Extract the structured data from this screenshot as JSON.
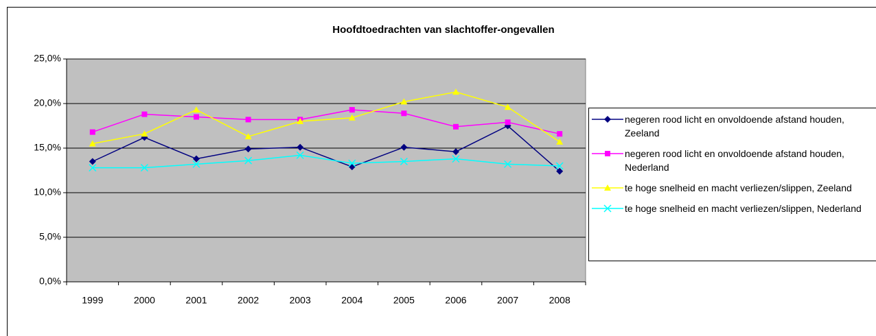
{
  "chart_data": {
    "type": "line",
    "title": "Hoofdtoedrachten van slachtoffer-ongevallen",
    "categories": [
      "1999",
      "2000",
      "2001",
      "2002",
      "2003",
      "2004",
      "2005",
      "2006",
      "2007",
      "2008"
    ],
    "series": [
      {
        "name": "negeren rood licht en onvoldoende afstand houden, Zeeland",
        "color": "#000080",
        "marker": "diamond",
        "values": [
          13.5,
          16.2,
          13.8,
          14.9,
          15.1,
          12.9,
          15.1,
          14.6,
          17.5,
          12.4
        ]
      },
      {
        "name": "negeren rood licht en onvoldoende afstand houden, Nederland",
        "color": "#ff00ff",
        "marker": "square",
        "values": [
          16.8,
          18.8,
          18.5,
          18.2,
          18.2,
          19.3,
          18.9,
          17.4,
          17.9,
          16.6
        ]
      },
      {
        "name": "te hoge snelheid en macht verliezen/slippen, Zeeland",
        "color": "#ffff00",
        "marker": "triangle",
        "values": [
          15.5,
          16.6,
          19.3,
          16.3,
          18.0,
          18.4,
          20.2,
          21.3,
          19.6,
          15.7
        ]
      },
      {
        "name": "te hoge snelheid en macht verliezen/slippen, Nederland",
        "color": "#00ffff",
        "marker": "x",
        "values": [
          12.8,
          12.8,
          13.2,
          13.6,
          14.2,
          13.3,
          13.5,
          13.8,
          13.2,
          13.0
        ]
      }
    ],
    "ylim": [
      0,
      25
    ],
    "yticks": [
      {
        "value": 0,
        "label": "0,0%"
      },
      {
        "value": 5,
        "label": "5,0%"
      },
      {
        "value": 10,
        "label": "10,0%"
      },
      {
        "value": 15,
        "label": "15,0%"
      },
      {
        "value": 20,
        "label": "20,0%"
      },
      {
        "value": 25,
        "label": "25,0%"
      }
    ],
    "grid": true,
    "plot_background": "#c0c0c0",
    "legend": "right"
  }
}
